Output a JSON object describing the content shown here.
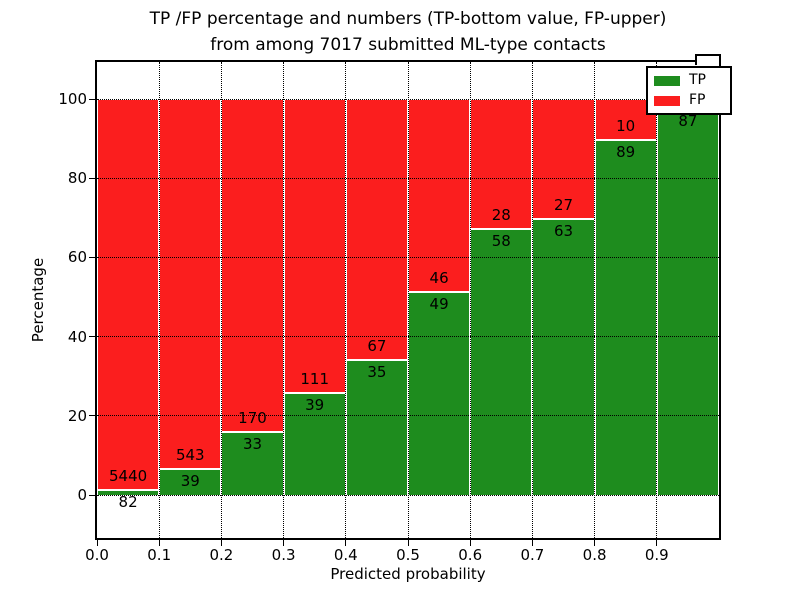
{
  "title": {
    "line1": "TP /FP percentage and numbers (TP-bottom value, FP-upper)",
    "line2": "from among 7017 submitted ML-type contacts"
  },
  "colors": {
    "tp": "#1e8c1e",
    "fp": "#fb1e1e",
    "grid": "#000000",
    "background": "#ffffff"
  },
  "chart_data": {
    "type": "bar",
    "stacked": true,
    "normalized_to_percent": true,
    "title": "TP /FP percentage and numbers (TP-bottom value, FP-upper) from among 7017 submitted ML-type contacts",
    "xlabel": "Predicted probability",
    "ylabel": "Percentage",
    "total_contacts": 7017,
    "x_tick_labels": [
      "0.0",
      "0.1",
      "0.2",
      "0.3",
      "0.4",
      "0.5",
      "0.6",
      "0.7",
      "0.8",
      "0.9"
    ],
    "y_tick_labels": [
      "0",
      "20",
      "40",
      "60",
      "80",
      "100"
    ],
    "y_ticks": [
      0,
      20,
      40,
      60,
      80,
      100
    ],
    "xlim": [
      0.0,
      1.0
    ],
    "ylim_display": [
      -11,
      110
    ],
    "grid": true,
    "legend_position": "upper right",
    "legend": [
      {
        "label": "TP",
        "color": "#1e8c1e"
      },
      {
        "label": "FP",
        "color": "#fb1e1e"
      }
    ],
    "bins": [
      {
        "range": "0.0-0.1",
        "tp": 82,
        "fp": 5440,
        "tp_label": "82",
        "fp_label": "5440",
        "tp_pct": 1.49
      },
      {
        "range": "0.1-0.2",
        "tp": 39,
        "fp": 543,
        "tp_label": "39",
        "fp_label": "543",
        "tp_pct": 6.7
      },
      {
        "range": "0.2-0.3",
        "tp": 33,
        "fp": 170,
        "tp_label": "33",
        "fp_label": "170",
        "tp_pct": 16.26
      },
      {
        "range": "0.3-0.4",
        "tp": 39,
        "fp": 111,
        "tp_label": "39",
        "fp_label": "111",
        "tp_pct": 26.0
      },
      {
        "range": "0.4-0.5",
        "tp": 35,
        "fp": 67,
        "tp_label": "35",
        "fp_label": "67",
        "tp_pct": 34.31
      },
      {
        "range": "0.5-0.6",
        "tp": 49,
        "fp": 46,
        "tp_label": "49",
        "fp_label": "46",
        "tp_pct": 51.58
      },
      {
        "range": "0.6-0.7",
        "tp": 58,
        "fp": 28,
        "tp_label": "58",
        "fp_label": "28",
        "tp_pct": 67.44
      },
      {
        "range": "0.7-0.8",
        "tp": 63,
        "fp": 27,
        "tp_label": "63",
        "fp_label": "27",
        "tp_pct": 70.0
      },
      {
        "range": "0.8-0.9",
        "tp": 89,
        "fp": 10,
        "tp_label": "89",
        "fp_label": "10",
        "tp_pct": 89.9
      },
      {
        "range": "0.9-1.0",
        "tp": 87,
        "tp_label": "87",
        "fp_label": "",
        "tp_pct": 97.8
      }
    ]
  }
}
